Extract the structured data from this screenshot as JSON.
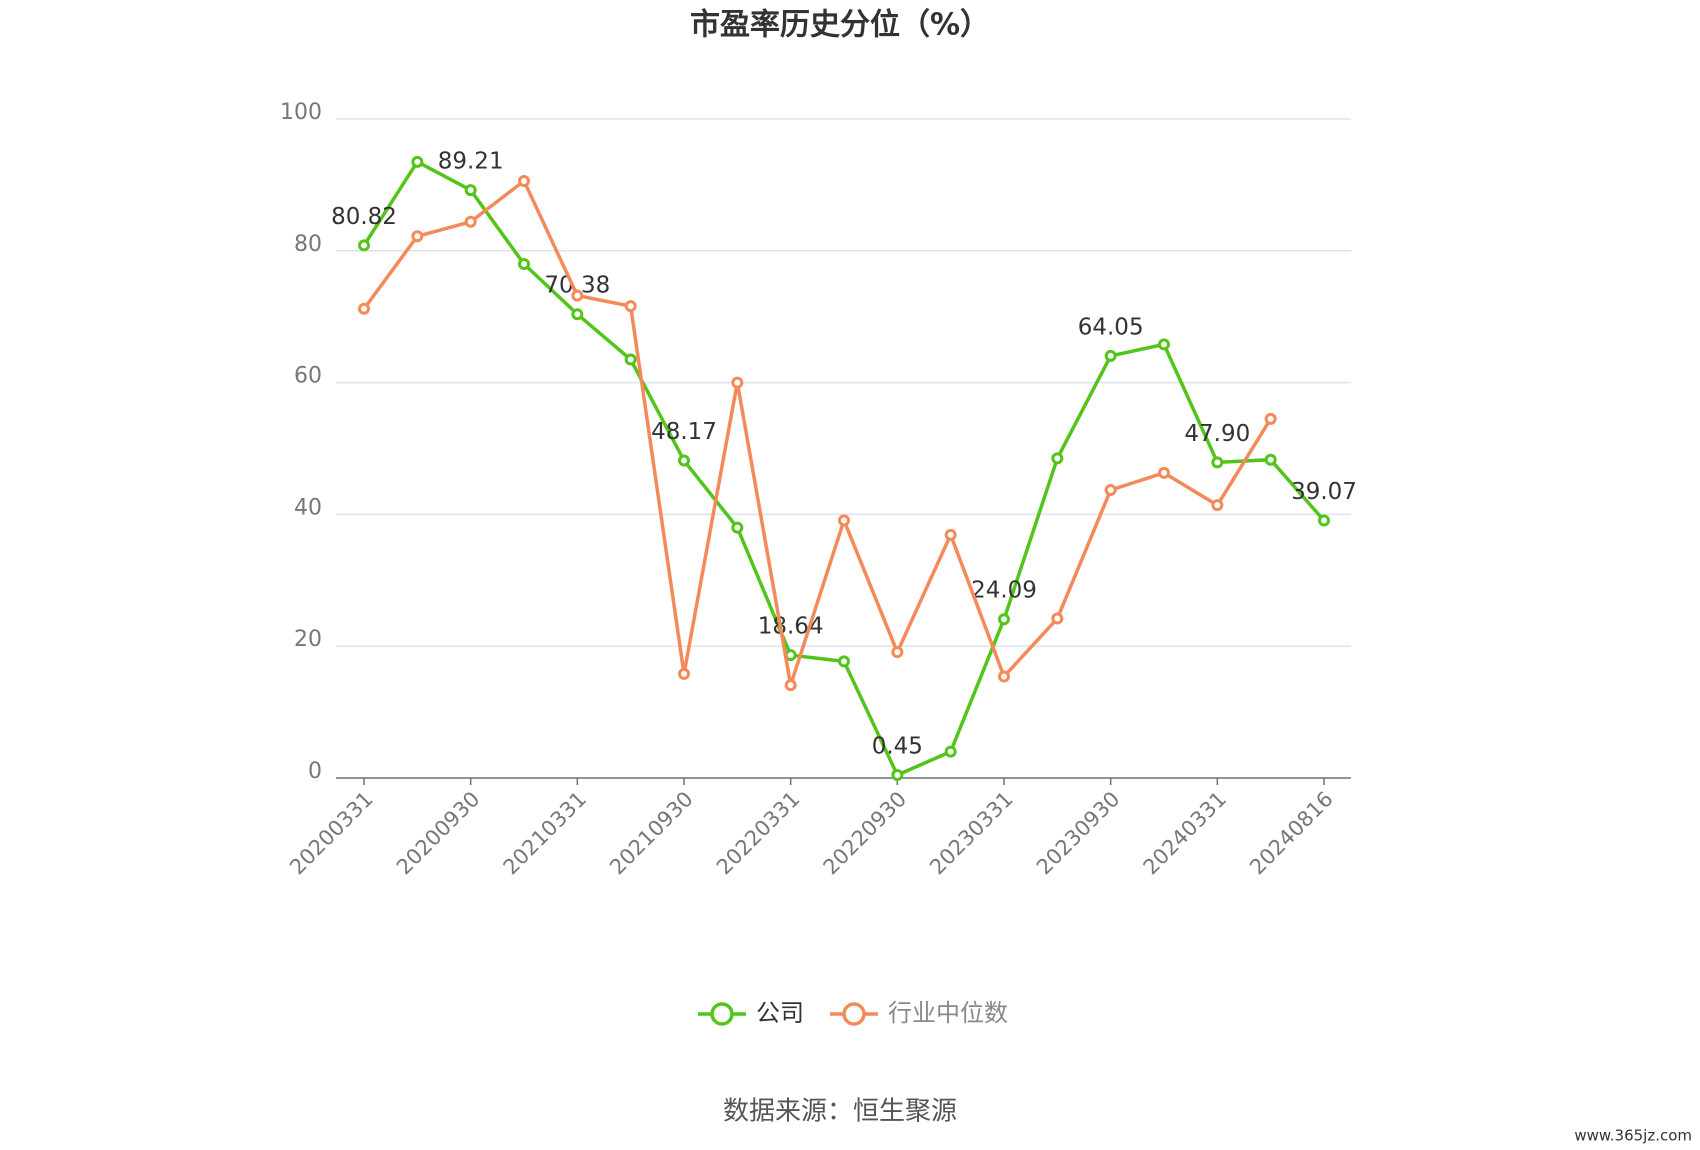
{
  "chart_data": {
    "type": "line",
    "title": "市盈率历史分位（%）",
    "categories": [
      "20200331",
      null,
      "20200930",
      null,
      "20210331",
      null,
      "20210930",
      null,
      "20220331",
      null,
      "20220930",
      null,
      "20230331",
      null,
      "20230930",
      null,
      "20240331",
      null,
      "20240816"
    ],
    "series": [
      {
        "name": "公司",
        "color": "#52c41a",
        "values": [
          80.82,
          93.5,
          89.21,
          78,
          70.38,
          63.5,
          48.17,
          38,
          18.64,
          17.7,
          0.45,
          4,
          24.09,
          48.5,
          64.05,
          65.8,
          47.9,
          48.3,
          39.07
        ],
        "value_labels": [
          "80.82",
          null,
          "89.21",
          null,
          "70.38",
          null,
          "48.17",
          null,
          "18.64",
          null,
          "0.45",
          null,
          "24.09",
          null,
          "64.05",
          null,
          "47.90",
          null,
          "39.07"
        ]
      },
      {
        "name": "行业中位数",
        "color": "#f4895a",
        "values": [
          71.2,
          82.2,
          84.4,
          90.6,
          73.2,
          71.6,
          15.8,
          60,
          14.1,
          39.1,
          19.1,
          36.9,
          15.4,
          24.2,
          43.7,
          46.3,
          41.4,
          54.5,
          null
        ]
      }
    ],
    "ylim": [
      0,
      100
    ],
    "yticks": [
      0,
      20,
      40,
      60,
      80,
      100
    ],
    "grid": true,
    "source": "数据来源：恒生聚源",
    "watermark": "www.365jz.com"
  }
}
